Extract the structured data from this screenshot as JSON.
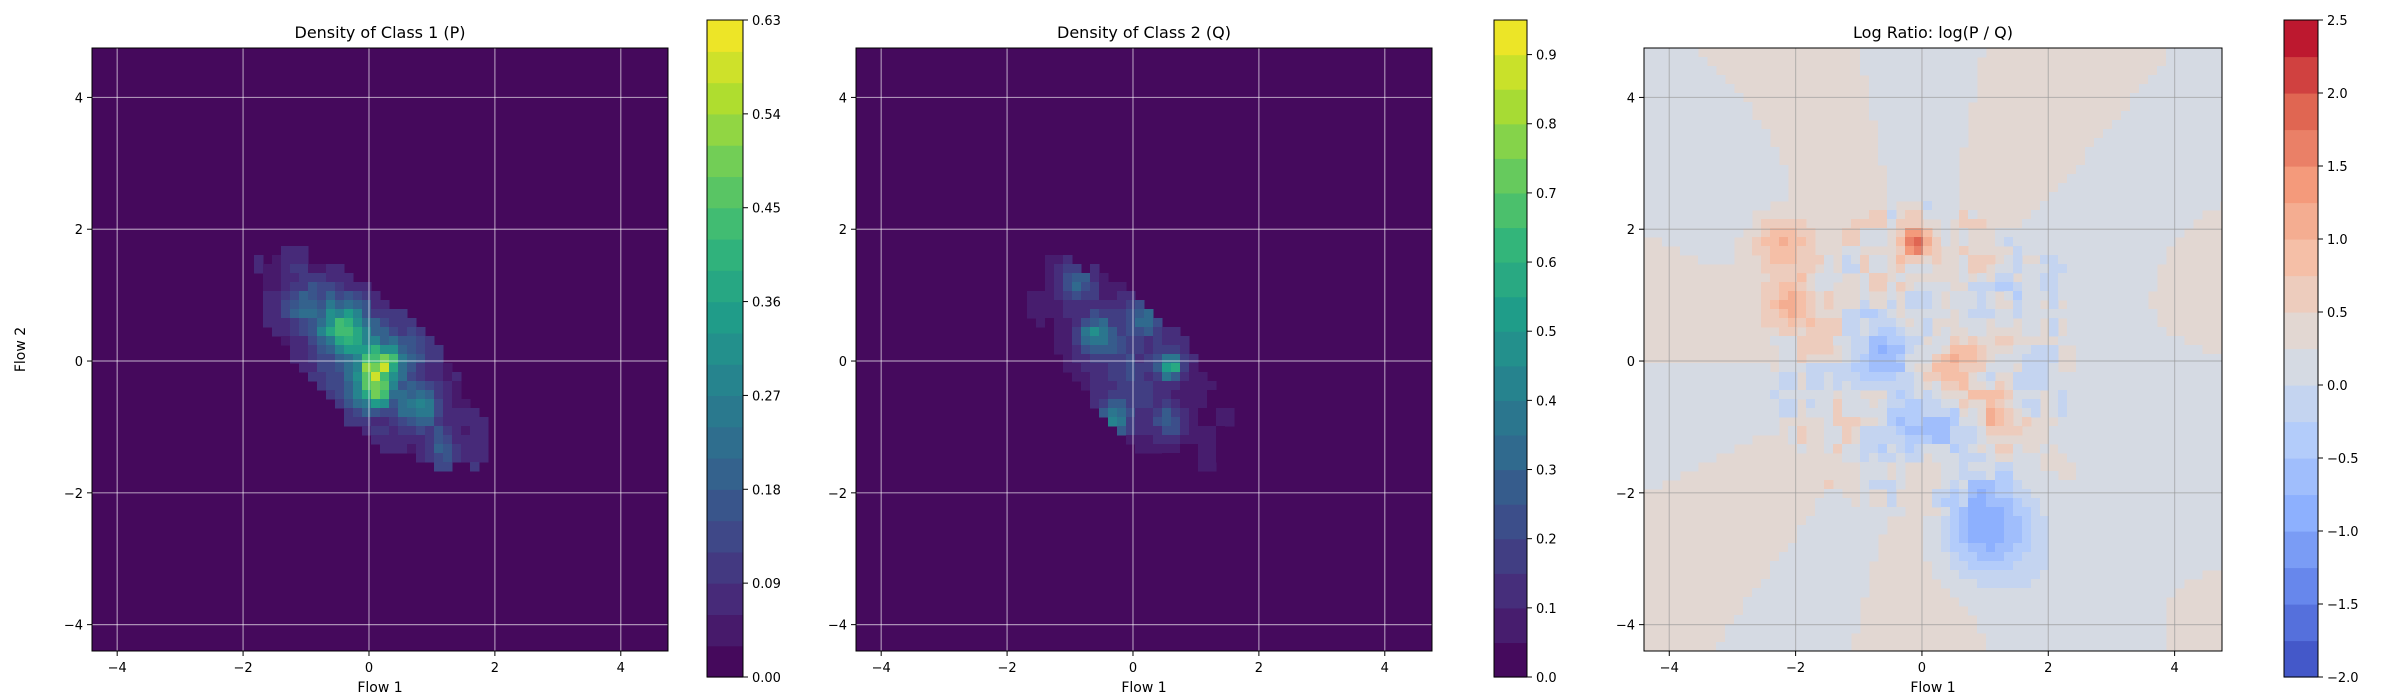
{
  "chart_data": [
    {
      "type": "heatmap",
      "title": "Density of Class 1 (P)",
      "xlabel": "Flow 1",
      "ylabel": "Flow 2",
      "xlim": [
        -4.4,
        4.75
      ],
      "ylim": [
        -4.4,
        4.75
      ],
      "xticks": [
        -4,
        -2,
        0,
        2,
        4
      ],
      "yticks": [
        -4,
        -2,
        0,
        2,
        4
      ],
      "grid": true,
      "colormap": "viridis",
      "colorbar": {
        "min": 0.0,
        "max": 0.63,
        "ticks": [
          0.0,
          0.09,
          0.18,
          0.27,
          0.36,
          0.45,
          0.54,
          0.63
        ],
        "tick_labels": [
          "0.00",
          "0.09",
          "0.18",
          "0.27",
          "0.36",
          "0.45",
          "0.54",
          "0.63"
        ],
        "levels": 21
      },
      "background_value": 0.0,
      "blobs": [
        {
          "x": 0.0,
          "y": 0.0,
          "sx": 0.65,
          "sy": 0.55,
          "value": 0.16
        },
        {
          "x": -0.4,
          "y": 0.5,
          "sx": 0.25,
          "sy": 0.25,
          "value": 0.28
        },
        {
          "x": 0.1,
          "y": -0.4,
          "sx": 0.22,
          "sy": 0.22,
          "value": 0.3
        },
        {
          "x": 0.2,
          "y": 0.0,
          "sx": 0.2,
          "sy": 0.18,
          "value": 0.33
        },
        {
          "x": 0.8,
          "y": -0.7,
          "sx": 0.2,
          "sy": 0.2,
          "value": 0.27
        },
        {
          "x": -1.0,
          "y": 0.9,
          "sx": 0.3,
          "sy": 0.3,
          "value": 0.12
        },
        {
          "x": -0.1,
          "y": 1.75,
          "sx": 0.15,
          "sy": 0.15,
          "value": 0.15
        },
        {
          "x": 1.2,
          "y": -1.4,
          "sx": 0.3,
          "sy": 0.3,
          "value": 0.1
        }
      ],
      "support": {
        "cx": 0.0,
        "cy": 0.0,
        "rx": 2.3,
        "ry": 0.9,
        "angle_deg": -42
      }
    },
    {
      "type": "heatmap",
      "title": "Density of Class 2 (Q)",
      "xlabel": "Flow 1",
      "ylabel": "",
      "xlim": [
        -4.4,
        4.75
      ],
      "ylim": [
        -4.4,
        4.75
      ],
      "xticks": [
        -4,
        -2,
        0,
        2,
        4
      ],
      "yticks": [
        -4,
        -2,
        0,
        2,
        4
      ],
      "grid": true,
      "colormap": "viridis",
      "colorbar": {
        "min": 0.0,
        "max": 0.95,
        "ticks": [
          0.0,
          0.1,
          0.2,
          0.3,
          0.4,
          0.5,
          0.6,
          0.7,
          0.8,
          0.9
        ],
        "tick_labels": [
          "0.0",
          "0.1",
          "0.2",
          "0.3",
          "0.4",
          "0.5",
          "0.6",
          "0.7",
          "0.8",
          "0.9"
        ],
        "levels": 19
      },
      "background_value": 0.0,
      "blobs": [
        {
          "x": 0.0,
          "y": 0.0,
          "sx": 0.6,
          "sy": 0.5,
          "value": 0.15
        },
        {
          "x": 0.6,
          "y": -0.1,
          "sx": 0.12,
          "sy": 0.12,
          "value": 0.5
        },
        {
          "x": -0.6,
          "y": 0.4,
          "sx": 0.2,
          "sy": 0.2,
          "value": 0.3
        },
        {
          "x": -0.3,
          "y": -0.9,
          "sx": 0.2,
          "sy": 0.2,
          "value": 0.33
        },
        {
          "x": 0.2,
          "y": 0.7,
          "sx": 0.18,
          "sy": 0.18,
          "value": 0.28
        },
        {
          "x": -0.9,
          "y": 1.2,
          "sx": 0.2,
          "sy": 0.2,
          "value": 0.25
        },
        {
          "x": 0.6,
          "y": -0.9,
          "sx": 0.2,
          "sy": 0.2,
          "value": 0.22
        },
        {
          "x": 1.8,
          "y": -1.9,
          "sx": 0.15,
          "sy": 0.15,
          "value": 0.08
        }
      ],
      "support": {
        "cx": 0.0,
        "cy": -0.1,
        "rx": 2.1,
        "ry": 0.85,
        "angle_deg": -45
      }
    },
    {
      "type": "heatmap",
      "title": "Log Ratio: log(P / Q)",
      "xlabel": "Flow 1",
      "ylabel": "",
      "xlim": [
        -4.4,
        4.75
      ],
      "ylim": [
        -4.4,
        4.75
      ],
      "xticks": [
        -4,
        -2,
        0,
        2,
        4
      ],
      "yticks": [
        -4,
        -2,
        0,
        2,
        4
      ],
      "grid": true,
      "colormap": "coolwarm",
      "colorbar": {
        "min": -2.0,
        "max": 2.5,
        "ticks": [
          -2.0,
          -1.5,
          -1.0,
          -0.5,
          0.0,
          0.5,
          1.0,
          1.5,
          2.0,
          2.5
        ],
        "tick_labels": [
          "−2.0",
          "−1.5",
          "−1.0",
          "−0.5",
          "0.0",
          "0.5",
          "1.0",
          "1.5",
          "2.0",
          "2.5"
        ],
        "levels": 18
      },
      "background_value": 0.35,
      "blobs": [
        {
          "x": -0.1,
          "y": 1.8,
          "sx": 0.18,
          "sy": 0.2,
          "value": 2.0
        },
        {
          "x": -2.2,
          "y": 1.8,
          "sx": 0.35,
          "sy": 0.3,
          "value": 0.9
        },
        {
          "x": -2.0,
          "y": 0.9,
          "sx": 0.35,
          "sy": 0.3,
          "value": 0.7
        },
        {
          "x": 0.5,
          "y": -0.2,
          "sx": 0.3,
          "sy": 0.3,
          "value": 0.9
        },
        {
          "x": 1.2,
          "y": -0.8,
          "sx": 0.25,
          "sy": 0.25,
          "value": 0.7
        },
        {
          "x": -0.6,
          "y": 0.2,
          "sx": 0.35,
          "sy": 0.35,
          "value": -0.9
        },
        {
          "x": 0.0,
          "y": -0.9,
          "sx": 0.45,
          "sy": 0.35,
          "value": -0.9
        },
        {
          "x": 1.0,
          "y": -2.5,
          "sx": 0.5,
          "sy": 0.5,
          "value": -1.1
        },
        {
          "x": 2.3,
          "y": 0.8,
          "sx": 1.2,
          "sy": 0.8,
          "value": -0.25
        },
        {
          "x": 3.5,
          "y": -2.5,
          "sx": 1.5,
          "sy": 1.2,
          "value": -0.2
        },
        {
          "x": -3.5,
          "y": 3.0,
          "sx": 1.2,
          "sy": 1.2,
          "value": -0.1
        }
      ]
    }
  ]
}
